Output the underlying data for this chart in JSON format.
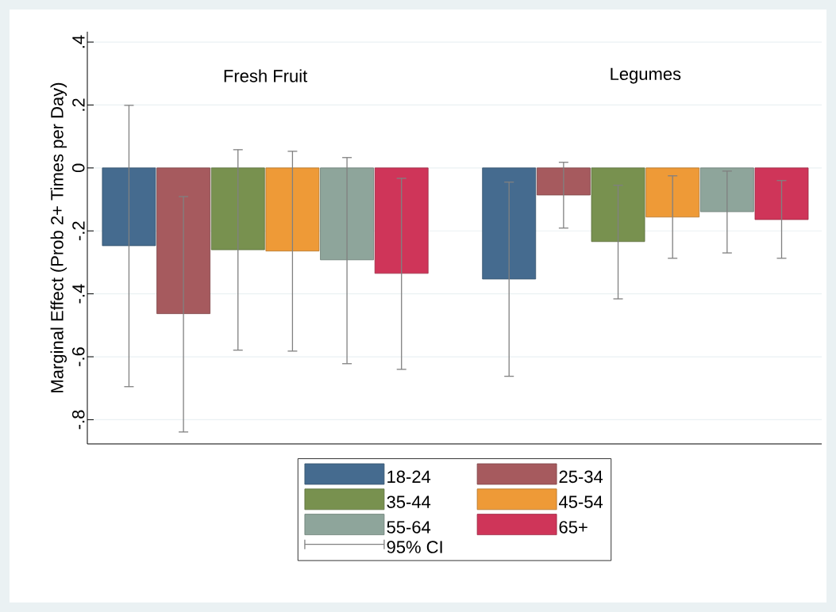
{
  "chart_data": {
    "type": "bar",
    "ylabel": "Marginal Effect (Prob 2+ Times per Day)",
    "categories": [
      "Fresh Fruit",
      "Legumes"
    ],
    "series": [
      {
        "name": "18-24",
        "color": "#456b8f",
        "values": [
          -0.247,
          -0.353
        ],
        "errors": [
          [
            -0.695,
            0.199
          ],
          [
            -0.662,
            -0.045
          ]
        ]
      },
      {
        "name": "25-34",
        "color": "#a65a5e",
        "values": [
          -0.463,
          -0.086
        ],
        "errors": [
          [
            -0.839,
            -0.091
          ],
          [
            -0.191,
            0.018
          ]
        ]
      },
      {
        "name": "35-44",
        "color": "#78914f",
        "values": [
          -0.26,
          -0.234
        ],
        "errors": [
          [
            -0.579,
            0.058
          ],
          [
            -0.416,
            -0.055
          ]
        ]
      },
      {
        "name": "45-54",
        "color": "#ee9a37",
        "values": [
          -0.264,
          -0.156
        ],
        "errors": [
          [
            -0.582,
            0.053
          ],
          [
            -0.287,
            -0.025
          ]
        ]
      },
      {
        "name": "55-64",
        "color": "#8ea59b",
        "values": [
          -0.292,
          -0.139
        ],
        "errors": [
          [
            -0.622,
            0.033
          ],
          [
            -0.27,
            -0.01
          ]
        ]
      },
      {
        "name": "65+",
        "color": "#cf3559",
        "values": [
          -0.335,
          -0.164
        ],
        "errors": [
          [
            -0.64,
            -0.033
          ],
          [
            -0.287,
            -0.04
          ]
        ]
      }
    ],
    "ylim": [
      -0.877,
      0.433
    ],
    "yticks": [
      {
        "value": -0.8,
        "label": "-.8"
      },
      {
        "value": -0.6,
        "label": "-.6"
      },
      {
        "value": -0.4,
        "label": "-.4"
      },
      {
        "value": -0.2,
        "label": "-.2"
      },
      0,
      {
        "value": 0.2,
        "label": ".2"
      },
      {
        "value": 0.4,
        "label": ".4"
      }
    ],
    "grid": "y",
    "legend": "bottom",
    "annotations": [
      "95% CI"
    ]
  }
}
